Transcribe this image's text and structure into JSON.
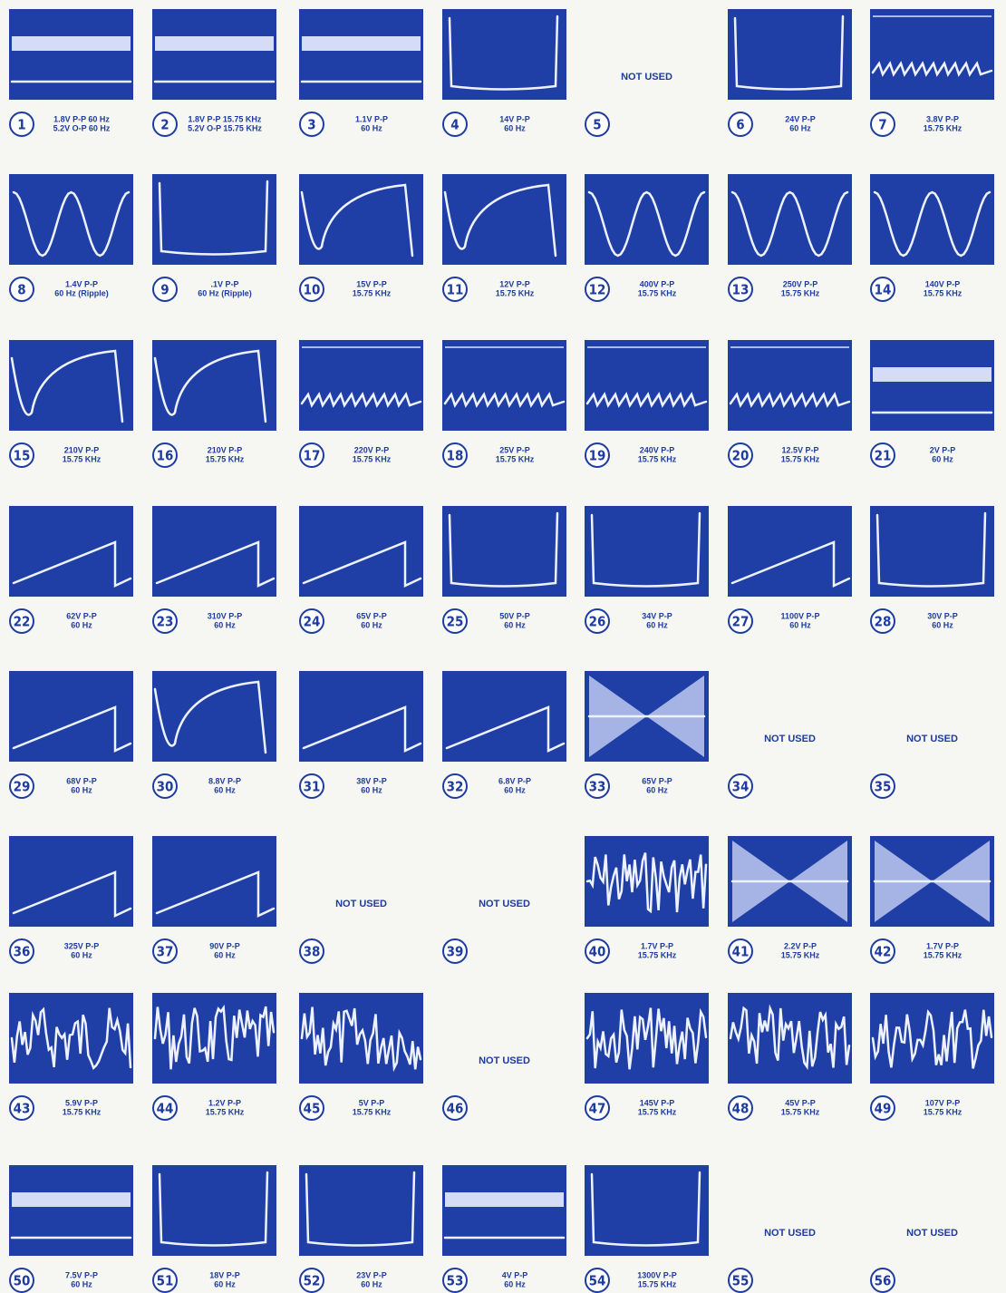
{
  "cells": [
    {
      "number": "1",
      "lines": [
        "1.8V P-P 60 Hz",
        "5.2V O-P 60 Hz"
      ]
    },
    {
      "number": "2",
      "lines": [
        "1.8V P-P 15.75 KHz",
        "5.2V O-P 15.75 KHz"
      ]
    },
    {
      "number": "3",
      "lines": [
        "1.1V P-P",
        "60 Hz"
      ]
    },
    {
      "number": "4",
      "lines": [
        "14V P-P",
        "60 Hz"
      ]
    },
    {
      "number": "5",
      "note": "NOT USED"
    },
    {
      "number": "6",
      "lines": [
        "24V P-P",
        "60 Hz"
      ]
    },
    {
      "number": "7",
      "lines": [
        "3.8V P-P",
        "15.75 KHz"
      ]
    },
    {
      "number": "8",
      "lines": [
        "1.4V P-P",
        "60 Hz (Ripple)"
      ]
    },
    {
      "number": "9",
      "lines": [
        ".1V P-P",
        "60 Hz (Ripple)"
      ]
    },
    {
      "number": "10",
      "lines": [
        "15V P-P",
        "15.75 KHz"
      ]
    },
    {
      "number": "11",
      "lines": [
        "12V P-P",
        "15.75 KHz"
      ]
    },
    {
      "number": "12",
      "lines": [
        "400V P-P",
        "15.75 KHz"
      ]
    },
    {
      "number": "13",
      "lines": [
        "250V P-P",
        "15.75 KHz"
      ]
    },
    {
      "number": "14",
      "lines": [
        "140V P-P",
        "15.75 KHz"
      ]
    },
    {
      "number": "15",
      "lines": [
        "210V P-P",
        "15.75 KHz"
      ]
    },
    {
      "number": "16",
      "lines": [
        "210V P-P",
        "15.75 KHz"
      ]
    },
    {
      "number": "17",
      "lines": [
        "220V P-P",
        "15.75 KHz"
      ]
    },
    {
      "number": "18",
      "lines": [
        "25V P-P",
        "15.75 KHz"
      ]
    },
    {
      "number": "19",
      "lines": [
        "240V P-P",
        "15.75 KHz"
      ]
    },
    {
      "number": "20",
      "lines": [
        "12.5V P-P",
        "15.75 KHz"
      ]
    },
    {
      "number": "21",
      "lines": [
        "2V P-P",
        "60 Hz"
      ]
    },
    {
      "number": "22",
      "lines": [
        "62V P-P",
        "60 Hz"
      ]
    },
    {
      "number": "23",
      "lines": [
        "310V P-P",
        "60 Hz"
      ]
    },
    {
      "number": "24",
      "lines": [
        "65V P-P",
        "60 Hz"
      ]
    },
    {
      "number": "25",
      "lines": [
        "50V P-P",
        "60 Hz"
      ]
    },
    {
      "number": "26",
      "lines": [
        "34V P-P",
        "60 Hz"
      ]
    },
    {
      "number": "27",
      "lines": [
        "1100V P-P",
        "60 Hz"
      ]
    },
    {
      "number": "28",
      "lines": [
        "30V P-P",
        "60 Hz"
      ]
    },
    {
      "number": "29",
      "lines": [
        "68V P-P",
        "60 Hz"
      ]
    },
    {
      "number": "30",
      "lines": [
        "8.8V P-P",
        "60 Hz"
      ]
    },
    {
      "number": "31",
      "lines": [
        "38V P-P",
        "60 Hz"
      ]
    },
    {
      "number": "32",
      "lines": [
        "6.8V P-P",
        "60 Hz"
      ]
    },
    {
      "number": "33",
      "lines": [
        "65V P-P",
        "60 Hz"
      ]
    },
    {
      "number": "34",
      "note": "NOT USED"
    },
    {
      "number": "35",
      "note": "NOT USED"
    },
    {
      "number": "36",
      "lines": [
        "325V P-P",
        "60 Hz"
      ]
    },
    {
      "number": "37",
      "lines": [
        "90V P-P",
        "60 Hz"
      ]
    },
    {
      "number": "38",
      "note": "NOT USED"
    },
    {
      "number": "39",
      "note": "NOT USED"
    },
    {
      "number": "40",
      "lines": [
        "1.7V P-P",
        "15.75 KHz"
      ]
    },
    {
      "number": "41",
      "lines": [
        "2.2V P-P",
        "15.75 KHz"
      ]
    },
    {
      "number": "42",
      "lines": [
        "1.7V P-P",
        "15.75 KHz"
      ]
    },
    {
      "number": "43",
      "lines": [
        "5.9V P-P",
        "15.75 KHz"
      ]
    },
    {
      "number": "44",
      "lines": [
        "1.2V P-P",
        "15.75 KHz"
      ]
    },
    {
      "number": "45",
      "lines": [
        "5V P-P",
        "15.75 KHz"
      ]
    },
    {
      "number": "46",
      "note": "NOT USED"
    },
    {
      "number": "47",
      "lines": [
        "145V P-P",
        "15.75 KHz"
      ]
    },
    {
      "number": "48",
      "lines": [
        "45V P-P",
        "15.75 KHz"
      ]
    },
    {
      "number": "49",
      "lines": [
        "107V P-P",
        "15.75 KHz"
      ]
    },
    {
      "number": "50",
      "lines": [
        "7.5V P-P",
        "60 Hz"
      ]
    },
    {
      "number": "51",
      "lines": [
        "18V P-P",
        "60 Hz"
      ]
    },
    {
      "number": "52",
      "lines": [
        "23V P-P",
        "60 Hz"
      ]
    },
    {
      "number": "53",
      "lines": [
        "4V P-P",
        "60 Hz"
      ]
    },
    {
      "number": "54",
      "lines": [
        "1300V P-P",
        "15.75 KHz"
      ]
    },
    {
      "number": "55",
      "note": "NOT USED"
    },
    {
      "number": "56",
      "note": "NOT USED"
    }
  ]
}
